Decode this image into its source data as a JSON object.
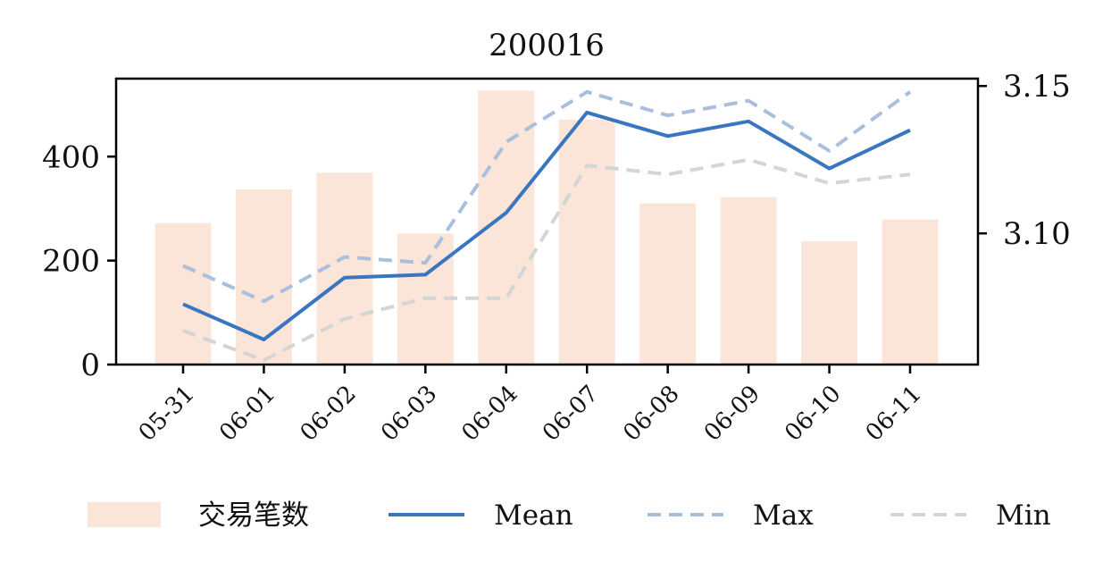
{
  "chart_data": {
    "type": "bar",
    "title": "200016",
    "categories": [
      "05-31",
      "06-01",
      "06-02",
      "06-03",
      "06-04",
      "06-07",
      "06-08",
      "06-09",
      "06-10",
      "06-11"
    ],
    "bar_series": {
      "name": "交易笔数",
      "axis": "left",
      "color": "#fbe5d9",
      "values": [
        272,
        337,
        369,
        252,
        527,
        471,
        310,
        322,
        237,
        279
      ]
    },
    "line_series": [
      {
        "name": "Mean",
        "axis": "right",
        "color": "#3a76bf",
        "style": "solid",
        "values": [
          3.076,
          3.064,
          3.085,
          3.086,
          3.107,
          3.141,
          3.133,
          3.138,
          3.122,
          3.135
        ]
      },
      {
        "name": "Max",
        "axis": "right",
        "color": "#a9bfdc",
        "style": "dashed",
        "values": [
          3.089,
          3.077,
          3.092,
          3.09,
          3.131,
          3.148,
          3.14,
          3.145,
          3.128,
          3.148
        ]
      },
      {
        "name": "Min",
        "axis": "right",
        "color": "#d5d5d5",
        "style": "dashed",
        "values": [
          3.067,
          3.057,
          3.071,
          3.078,
          3.078,
          3.123,
          3.12,
          3.125,
          3.117,
          3.12
        ]
      }
    ],
    "y_left": {
      "ylim": [
        0,
        550
      ],
      "ticks": [
        0,
        200,
        400
      ]
    },
    "y_right": {
      "ylim": [
        3.0555,
        3.1525
      ],
      "ticks": [
        3.1,
        3.15
      ],
      "tick_labels": [
        "3.10",
        "3.15"
      ]
    },
    "xlabel": "",
    "ylabel": "",
    "grid": false,
    "legend": {
      "position": "bottom",
      "entries": [
        "交易笔数",
        "Mean",
        "Max",
        "Min"
      ]
    }
  }
}
